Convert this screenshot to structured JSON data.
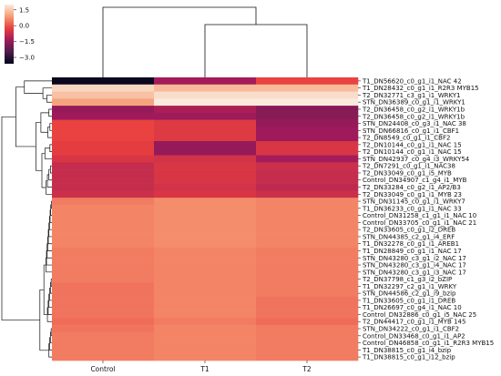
{
  "chart_data": {
    "type": "heatmap",
    "title": "",
    "xlabel": "",
    "ylabel": "",
    "columns": [
      "Control",
      "T1",
      "T2"
    ],
    "rows": [
      "T1_DN56620_c0_g1_i1_NAC 42",
      "T1_DN28432_c0_g1_i1_R2R3 MYB15",
      "T2_DN32771_c3_g1_i1_WRKY1",
      "STN_DN36389_c0_g1_i1_WRKY1",
      "T2_DN36458_c0_g2_i1_WRKY1b",
      "T2_DN36458_c0_g2_i1_WRKY1b",
      "STN_DN24408_c0_g3_i1_NAC 38",
      "STN_DN66816_c0_g1_i1_CBF1",
      "T2_DN8549_c0_g1_i1_CBF2",
      "T2_DN10144_c0_g1_i1_NAC 15",
      "T2_DN10144_c0_g1_i1_NAC 15",
      "STN_DN42937_c0_g4_i3_WRKY54",
      "T2_DN7291_c0_g1_i1_NAC38",
      "T2_DN33049_c0_g1_i5_MYB",
      "Control_DN34907_c1_g4_i1_MYB",
      "T2_DN33284_c0_g2_i1_AP2/B3",
      "T2_DN33049_c0_g1_i1_MYB 23",
      "STN_DN31145_c0_g1_i1_WRKY7",
      "T1_DN36233_c0_g1_i1_NAC 33",
      "Control_DN31258_c1_g1_i1_NAC 10",
      "Control_DN33705_c0_g1_i1_NAC 21",
      "T2_DN33605_c0_g1_i2_DREB",
      "STN_DN44385_c2_g1_i4_ERF",
      "T1_DN32278_c0_g1_i1_AREB1",
      "T1_DN28849_c0_g1_i1_NAC 17",
      "STN_DN43280_c3_g1_i2_NAC 17",
      "STN_DN43280_c3_g1_i4_NAC 17",
      "STN_DN43280_c3_g1_i3_NAC 17",
      "T2_DN37798_c1_g3_i2_bZIP",
      "T1_DN32297_c2_g1_i1_WRKY",
      "STN_DN44586_c2_g1_i9_bzip",
      "T1_DN33605_c0_g1_i1_DREB",
      "T1_DN26697_c0_g4_i1_NAC 10",
      "Control_DN32886_c0_g1_i5_NAC 25",
      "T2_DN44417_c0_g1_i1_MYB 145",
      "STN_DN34222_c0_g1_i1_CBF2",
      "Control_DN33468_c0_g1_i1_AP2",
      "Control_DN46858_c0_g1_i1_R2R3 MYB15",
      "T1_DN38815_c0_g1_i4_bzip",
      "T1_DN38815_c0_g1_i12_bzip"
    ],
    "values": [
      [
        -3.5,
        -1.3,
        -0.2
      ],
      [
        1.7,
        1.3,
        1.3
      ],
      [
        1.4,
        1.8,
        1.8
      ],
      [
        1.0,
        2.0,
        2.0
      ],
      [
        -1.5,
        -1.2,
        -1.7
      ],
      [
        -1.4,
        -1.4,
        -1.7
      ],
      [
        -0.2,
        -0.4,
        -1.5
      ],
      [
        -0.2,
        -0.4,
        -1.4
      ],
      [
        -0.2,
        -0.4,
        -1.4
      ],
      [
        -0.3,
        -1.5,
        -0.5
      ],
      [
        -0.3,
        -1.5,
        -0.5
      ],
      [
        -0.5,
        -0.6,
        -1.3
      ],
      [
        -0.8,
        -0.5,
        -0.7
      ],
      [
        -0.8,
        -0.5,
        -0.8
      ],
      [
        -0.8,
        -0.5,
        -0.8
      ],
      [
        -0.8,
        -0.6,
        -0.9
      ],
      [
        -0.7,
        -0.5,
        -0.7
      ],
      [
        0.5,
        0.7,
        0.6
      ],
      [
        0.6,
        0.7,
        0.6
      ],
      [
        0.6,
        0.7,
        0.6
      ],
      [
        0.6,
        0.7,
        0.6
      ],
      [
        0.6,
        0.7,
        0.6
      ],
      [
        0.6,
        0.7,
        0.6
      ],
      [
        0.6,
        0.7,
        0.6
      ],
      [
        0.5,
        0.6,
        0.5
      ],
      [
        0.5,
        0.6,
        0.5
      ],
      [
        0.5,
        0.6,
        0.5
      ],
      [
        0.5,
        0.6,
        0.5
      ],
      [
        0.5,
        0.6,
        0.5
      ],
      [
        0.4,
        0.6,
        0.5
      ],
      [
        0.4,
        0.6,
        0.5
      ],
      [
        0.4,
        0.6,
        0.4
      ],
      [
        0.4,
        0.6,
        0.4
      ],
      [
        0.4,
        0.6,
        0.4
      ],
      [
        0.3,
        0.5,
        0.3
      ],
      [
        0.4,
        0.6,
        0.5
      ],
      [
        0.5,
        0.6,
        0.5
      ],
      [
        0.5,
        0.6,
        0.5
      ],
      [
        0.5,
        0.6,
        0.5
      ],
      [
        0.5,
        0.6,
        0.5
      ]
    ],
    "colorbar": {
      "ticks": [
        1.5,
        0.0,
        -1.5,
        -3.0
      ],
      "range": [
        -3.6,
        2.0
      ]
    },
    "colormap": [
      "#03051a",
      "#4c1d4b",
      "#a11a5b",
      "#e83f3f",
      "#f69c73",
      "#faebdd"
    ]
  }
}
